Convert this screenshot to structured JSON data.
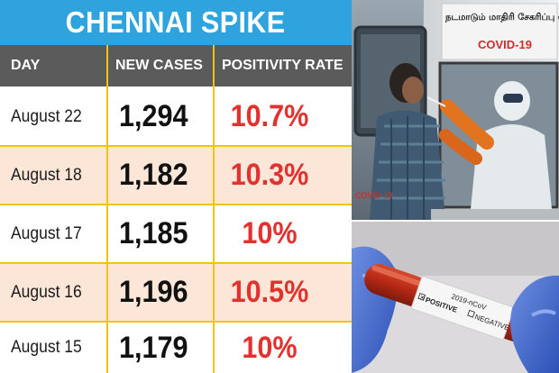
{
  "infographic": {
    "title": "CHENNAI SPIKE",
    "headers": {
      "day": "DAY",
      "cases": "NEW CASES",
      "positivity": "POSITIVITY RATE"
    },
    "rows": [
      {
        "day": "August 22",
        "cases": "1,294",
        "positivity": "10.7%"
      },
      {
        "day": "August 18",
        "cases": "1,182",
        "positivity": "10.3%"
      },
      {
        "day": "August 17",
        "cases": "1,185",
        "positivity": "10%"
      },
      {
        "day": "August 16",
        "cases": "1,196",
        "positivity": "10.5%"
      },
      {
        "day": "August 15",
        "cases": "1,179",
        "positivity": "10%"
      }
    ],
    "colors": {
      "title_bg": "#2ea3de",
      "header_bg": "#5b5b5b",
      "divider": "#f2c313",
      "shade": "#fbe6d8",
      "positivity": "#e2322f"
    }
  },
  "photos": {
    "van_signage": {
      "tamil": "நடமாடும் மாதிரி சேகரிப்பு வ",
      "label": "COVID-19"
    },
    "test_tube": {
      "code": "2019-nCoV",
      "positive": "POSITIVE",
      "negative": "NEGATIVE"
    }
  }
}
